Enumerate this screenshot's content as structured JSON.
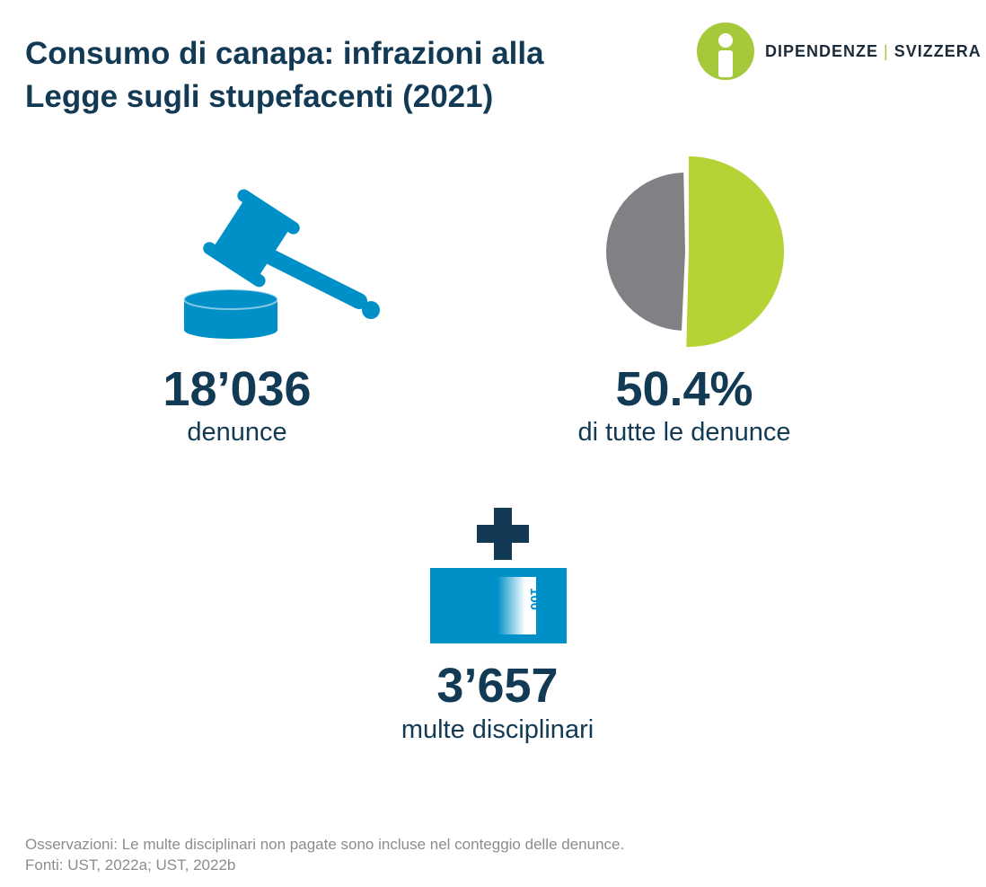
{
  "header": {
    "title_line1": "Consumo di canapa: infrazioni alla",
    "title_line2": "Legge sugli stupefacenti (2021)"
  },
  "logo": {
    "part1": "DIPENDENZE",
    "separator": "|",
    "part2": "SVIZZERA",
    "icon": "person-circle-icon"
  },
  "stats": {
    "complaints": {
      "value": "18’036",
      "label": "denunce",
      "icon": "gavel-icon"
    },
    "share": {
      "value": "50.4%",
      "label": "di tutte le denunce",
      "icon": "pie-icon",
      "fraction": 0.504
    },
    "fines": {
      "value": "3’657",
      "label": "multe disciplinari",
      "icon": "banknote-icon",
      "banknote_value": "100",
      "plus_icon": "plus-icon"
    }
  },
  "colors": {
    "navy": "#123a55",
    "blue": "#0090c8",
    "green": "#b5d334",
    "gray": "#7f8184"
  },
  "footer": {
    "note": "Osservazioni: Le multe disciplinari non pagate sono incluse nel conteggio delle denunce.",
    "sources": "Fonti: UST, 2022a; UST, 2022b"
  }
}
